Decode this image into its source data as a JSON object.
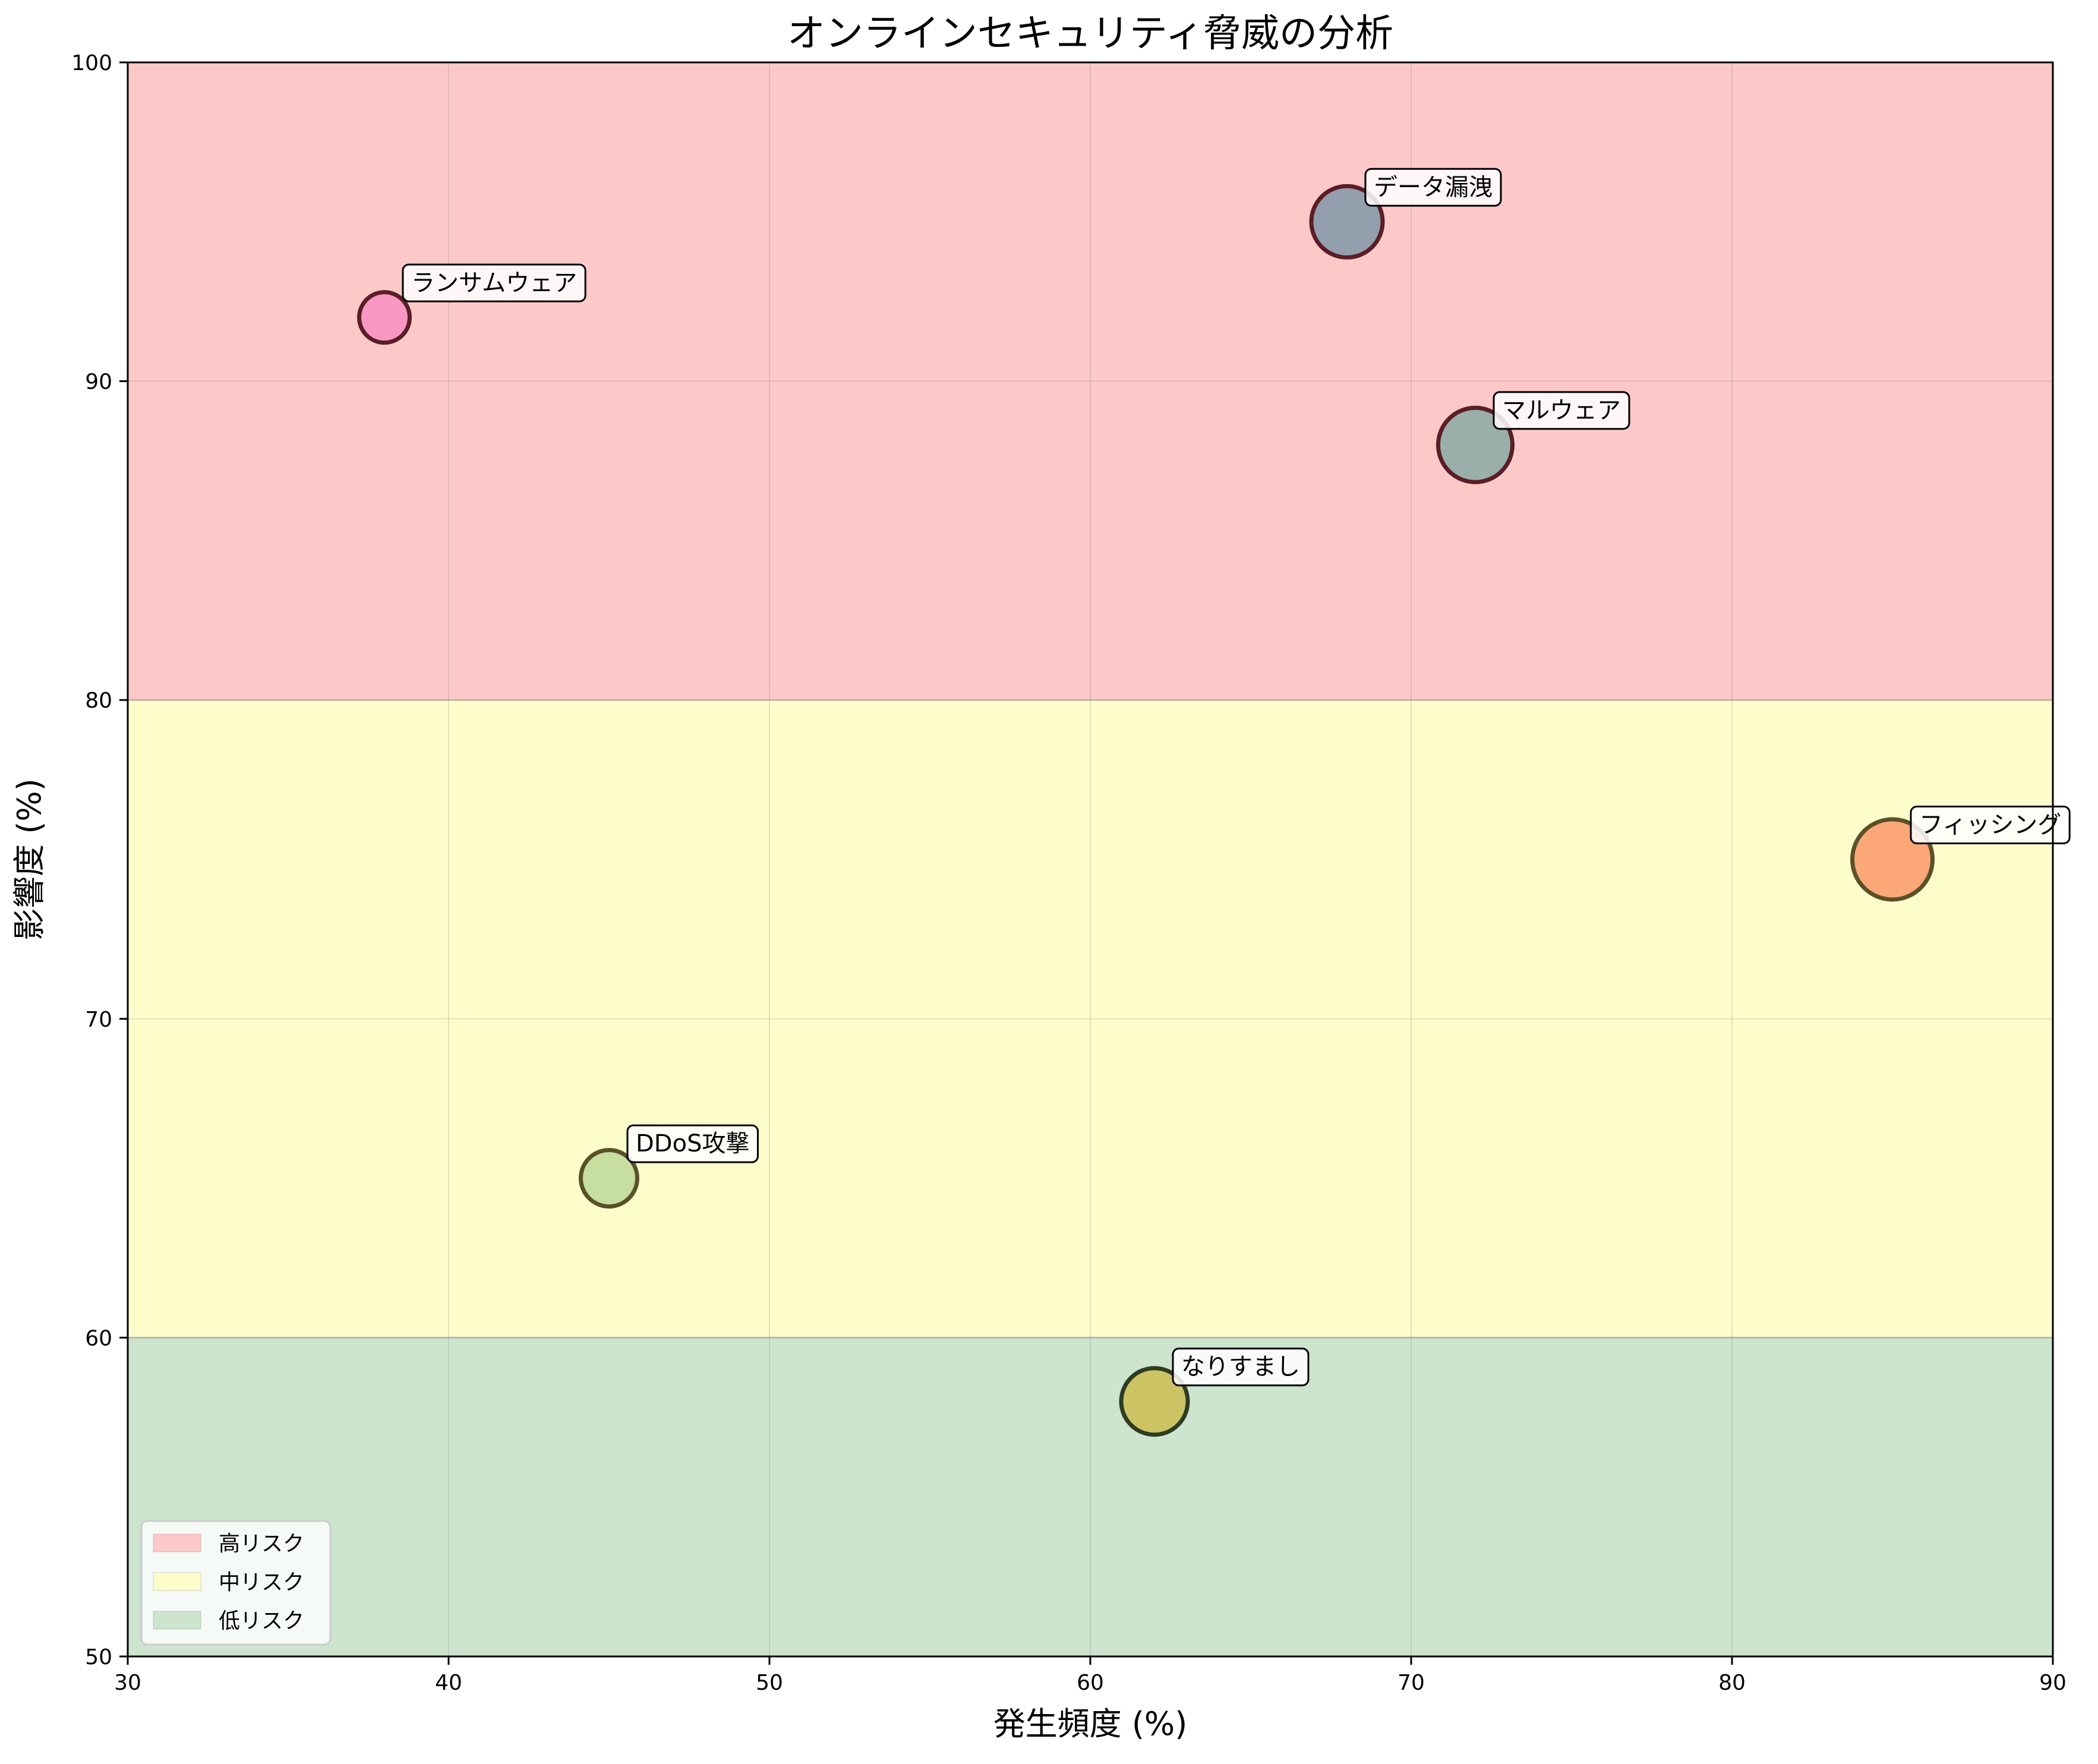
{
  "chart_data": {
    "type": "scatter",
    "title": "オンラインセキュリティ脅威の分析",
    "xlabel": "発生頻度 (%)",
    "ylabel": "影響度 (%)",
    "xlim": [
      30,
      90
    ],
    "ylim": [
      50,
      100
    ],
    "x_ticks": [
      "30",
      "40",
      "50",
      "60",
      "70",
      "80",
      "90"
    ],
    "y_ticks": [
      "50",
      "60",
      "70",
      "80",
      "90",
      "100"
    ],
    "grid": true,
    "bands": [
      {
        "name": "高リスク",
        "y_from": 80,
        "y_to": 100,
        "color": "#fcc8c8"
      },
      {
        "name": "中リスク",
        "y_from": 60,
        "y_to": 80,
        "color": "#fdfccb"
      },
      {
        "name": "低リスク",
        "y_from": 50,
        "y_to": 60,
        "color": "#cde4cf"
      }
    ],
    "legend_position": "lower-left",
    "points": [
      {
        "label": "データ漏洩",
        "x": 68,
        "y": 95,
        "color": "#939fac",
        "edge": "#5a1e26",
        "size": 1.2
      },
      {
        "label": "ランサムウェア",
        "x": 38,
        "y": 92,
        "color": "#f897c3",
        "edge": "#5a1e26",
        "size": 0.85
      },
      {
        "label": "マルウェア",
        "x": 72,
        "y": 88,
        "color": "#9aafa9",
        "edge": "#5a1e26",
        "size": 1.25
      },
      {
        "label": "フィッシング",
        "x": 85,
        "y": 75,
        "color": "#fba777",
        "edge": "#5a5128",
        "size": 1.35
      },
      {
        "label": "DDoS攻撃",
        "x": 45,
        "y": 65,
        "color": "#c7dea1",
        "edge": "#5a5128",
        "size": 0.95
      },
      {
        "label": "なりすまし",
        "x": 62,
        "y": 58,
        "color": "#ccc464",
        "edge": "#2e3d22",
        "size": 1.12
      }
    ]
  }
}
